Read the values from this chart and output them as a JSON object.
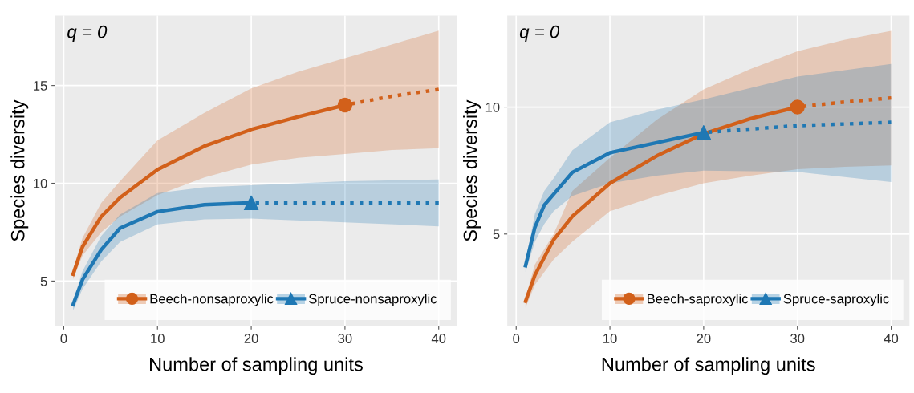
{
  "chart_data": [
    {
      "type": "line",
      "xlabel": "Number of sampling units",
      "ylabel": "Species diversity",
      "annotations": [
        "q = 0"
      ],
      "xlim": [
        -0.95,
        41.95
      ],
      "ylim": [
        2.69,
        18.57
      ],
      "xticks": [
        0,
        10,
        20,
        30,
        40
      ],
      "yticks": [
        5,
        10,
        15
      ],
      "grid": true,
      "legend": "bottom right",
      "series": [
        {
          "name": "Beech-nonsaproxylic",
          "color": "#d2601a",
          "x": [
            1,
            2,
            4,
            6,
            10,
            15,
            20,
            25,
            30
          ],
          "values": [
            5.35,
            6.75,
            8.3,
            9.26,
            10.7,
            11.9,
            12.75,
            13.4,
            14.0
          ],
          "lower": [
            5.1,
            6.3,
            7.5,
            8.3,
            9.4,
            10.3,
            10.95,
            11.3,
            11.5
          ],
          "upper": [
            5.6,
            7.2,
            9.0,
            10.1,
            12.2,
            13.6,
            14.85,
            15.7,
            16.4
          ],
          "line_style": "solid"
        },
        {
          "type": "scatter",
          "color": "#d2601a",
          "x": [
            30
          ],
          "values": [
            14.0
          ],
          "marker": "circle"
        },
        {
          "color": "#d2601a",
          "x": [
            30,
            35,
            40
          ],
          "values": [
            14.0,
            14.45,
            14.8
          ],
          "lower": [
            11.5,
            11.7,
            11.8
          ],
          "upper": [
            16.4,
            17.1,
            17.8
          ],
          "marker": "none",
          "line_style": "dotted"
        },
        {
          "name": "Spruce-nonsaproxylic",
          "color": "#1f78b4",
          "x": [
            1,
            2,
            4,
            6,
            10,
            15,
            20
          ],
          "values": [
            3.8,
            5.07,
            6.6,
            7.7,
            8.55,
            8.9,
            9.0
          ],
          "lower": [
            3.5,
            4.6,
            6.0,
            7.0,
            7.9,
            8.15,
            8.2
          ],
          "upper": [
            4.0,
            5.5,
            7.3,
            8.4,
            9.5,
            9.8,
            9.9
          ],
          "line_style": "solid"
        },
        {
          "type": "scatter",
          "color": "#1f78b4",
          "x": [
            20
          ],
          "values": [
            9.0
          ],
          "marker": "triangle"
        },
        {
          "color": "#1f78b4",
          "x": [
            20,
            30,
            40
          ],
          "values": [
            9.0,
            9.0,
            9.0
          ],
          "lower": [
            8.2,
            8.0,
            7.8
          ],
          "upper": [
            9.9,
            10.1,
            10.2
          ],
          "marker": "none",
          "line_style": "dotted"
        }
      ]
    },
    {
      "type": "line",
      "xlabel": "Number of sampling units",
      "ylabel": "Species diversity",
      "annotations": [
        "q = 0"
      ],
      "xlim": [
        -0.95,
        41.95
      ],
      "ylim": [
        1.37,
        13.6
      ],
      "xticks": [
        0,
        10,
        20,
        30,
        40
      ],
      "yticks": [
        5,
        10
      ],
      "grid": true,
      "legend": "bottom right",
      "series": [
        {
          "name": "Beech-saproxylic",
          "color": "#d2601a",
          "x": [
            1,
            2,
            4,
            6,
            10,
            15,
            20,
            25,
            30
          ],
          "values": [
            2.35,
            3.38,
            4.78,
            5.7,
            7.0,
            8.08,
            8.95,
            9.55,
            10.0
          ],
          "lower": [
            2.1,
            3.0,
            4.0,
            4.7,
            5.9,
            6.5,
            7.0,
            7.3,
            7.55
          ],
          "upper": [
            2.5,
            3.8,
            5.0,
            6.7,
            8.0,
            9.5,
            10.7,
            11.5,
            12.2
          ],
          "line_style": "solid"
        },
        {
          "type": "scatter",
          "color": "#d2601a",
          "x": [
            30
          ],
          "values": [
            10.0
          ],
          "marker": "circle"
        },
        {
          "color": "#d2601a",
          "x": [
            30,
            35,
            40
          ],
          "values": [
            10.0,
            10.2,
            10.36
          ],
          "lower": [
            7.55,
            7.65,
            7.7
          ],
          "upper": [
            12.2,
            12.65,
            13.0
          ],
          "marker": "none",
          "line_style": "dotted"
        },
        {
          "name": "Spruce-saproxylic",
          "color": "#1f78b4",
          "x": [
            1,
            2,
            3,
            4,
            6,
            10,
            15,
            20
          ],
          "values": [
            3.75,
            5.27,
            6.14,
            6.57,
            7.43,
            8.2,
            8.6,
            9.0
          ],
          "lower": [
            3.5,
            4.7,
            5.4,
            5.9,
            6.5,
            7.0,
            7.3,
            7.5
          ],
          "upper": [
            3.9,
            5.8,
            6.7,
            7.2,
            8.3,
            9.4,
            9.9,
            10.3
          ],
          "line_style": "solid"
        },
        {
          "type": "scatter",
          "color": "#1f78b4",
          "x": [
            20
          ],
          "values": [
            9.0
          ],
          "marker": "triangle"
        },
        {
          "color": "#1f78b4",
          "x": [
            20,
            30,
            40
          ],
          "values": [
            9.0,
            9.27,
            9.4
          ],
          "lower": [
            7.5,
            7.45,
            7.05
          ],
          "upper": [
            10.3,
            11.2,
            11.7
          ],
          "marker": "none",
          "line_style": "dotted"
        }
      ]
    }
  ]
}
